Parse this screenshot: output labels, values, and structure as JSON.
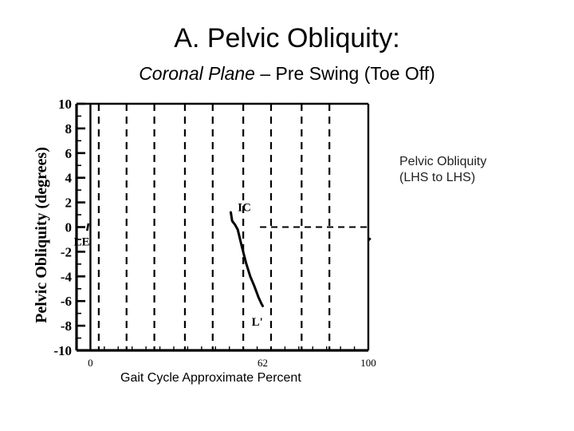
{
  "slide": {
    "title": "A. Pelvic Obliquity:",
    "subtitle_italic": "Coronal Plane",
    "subtitle_rest": " – Pre Swing (Toe Off)",
    "side_note_line1": "Pelvic Obliquity",
    "side_note_line2": "(LHS to LHS)",
    "x_caption": "Gait Cycle Approximate Percent"
  },
  "chart_data": {
    "type": "line",
    "title": "",
    "xlabel": "Gait Cycle Approximate Percent",
    "ylabel": "Pelvic Obliquity (degrees)",
    "xlim": [
      -5,
      100
    ],
    "ylim": [
      -10,
      10
    ],
    "y_ticks": [
      10,
      8,
      6,
      4,
      2,
      0,
      -2,
      -4,
      -6,
      -8,
      -10
    ],
    "y_tick_labels": [
      "10",
      "8",
      "6",
      "4",
      "2",
      "0",
      "-2",
      "-4",
      "-6",
      "-8",
      "-10"
    ],
    "x_tick_labels": [
      {
        "x": 0,
        "label": "0"
      },
      {
        "x": 62,
        "label": "62"
      },
      {
        "x": 100,
        "label": "100"
      }
    ],
    "dashed_verticals": [
      3,
      13,
      23,
      34,
      44,
      55,
      65,
      76,
      86
    ],
    "solid_verticals": [
      0,
      100
    ],
    "zero_line_dashed": true,
    "series": [
      {
        "x": [
          50.5,
          51,
          52,
          53,
          54.5,
          56,
          57.5,
          59,
          60.5,
          61.5,
          62
        ],
        "y": [
          1.2,
          0.5,
          0.2,
          -0.2,
          -1.6,
          -2.9,
          -4.0,
          -4.8,
          -5.7,
          -6.2,
          -6.4
        ]
      }
    ],
    "stub_left": {
      "x": [
        -1.2,
        -0.7
      ],
      "y": [
        -0.3,
        0.3
      ]
    },
    "stub_right": {
      "x": [
        100,
        100.8
      ],
      "y": [
        -1.1,
        -0.9
      ]
    },
    "annotations": [
      {
        "x": -6,
        "y": -1.5,
        "label": "LE"
      },
      {
        "x": 53,
        "y": 1.3,
        "label": "IC"
      },
      {
        "x": 58,
        "y": -8.0,
        "label": "L'"
      }
    ]
  }
}
